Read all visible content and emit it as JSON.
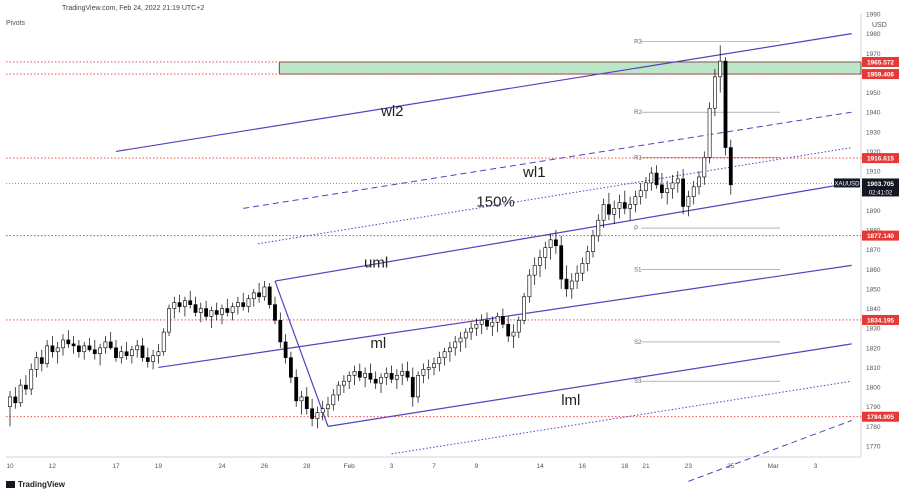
{
  "header": {
    "caption": "TradingView.com, Feb 24, 2022 21:19 UTC+2"
  },
  "indicator_label": "Pivots",
  "brand": {
    "name": "TradingView"
  },
  "chart_data": {
    "type": "candlestick",
    "currency_label": "USD",
    "ylim": [
      1760,
      1990
    ],
    "y_ticks": [
      1770,
      1780,
      1790,
      1800,
      1810,
      1820,
      1830,
      1840,
      1850,
      1860,
      1870,
      1880,
      1890,
      1900,
      1910,
      1920,
      1930,
      1940,
      1950,
      1960,
      1970,
      1980,
      1990
    ],
    "x_ticks": [
      {
        "label": "10",
        "t": 0
      },
      {
        "label": "12",
        "t": 2
      },
      {
        "label": "17",
        "t": 5
      },
      {
        "label": "19",
        "t": 7
      },
      {
        "label": "24",
        "t": 10
      },
      {
        "label": "26",
        "t": 12
      },
      {
        "label": "28",
        "t": 14
      },
      {
        "label": "Feb",
        "t": 16
      },
      {
        "label": "3",
        "t": 18
      },
      {
        "label": "7",
        "t": 20
      },
      {
        "label": "9",
        "t": 22
      },
      {
        "label": "14",
        "t": 25
      },
      {
        "label": "16",
        "t": 27
      },
      {
        "label": "18",
        "t": 29
      },
      {
        "label": "21",
        "t": 30
      },
      {
        "label": "23",
        "t": 32
      },
      {
        "label": "25",
        "t": 34
      },
      {
        "label": "Mar",
        "t": 36
      },
      {
        "label": "3",
        "t": 38
      }
    ],
    "horizontal_levels": [
      {
        "label": "1965.572",
        "value": 1965.572,
        "color": "#e53935"
      },
      {
        "label": "1959.406",
        "value": 1959.406,
        "color": "#e53935"
      },
      {
        "label": "1916.615",
        "value": 1916.615,
        "color": "#e53935"
      },
      {
        "label": "1877.140",
        "value": 1877.14,
        "color": "#e53935"
      },
      {
        "label": "1834.195",
        "value": 1834.195,
        "color": "#e53935"
      },
      {
        "label": "1784.905",
        "value": 1784.905,
        "color": "#e53935"
      }
    ],
    "current_price": {
      "symbol": "XAUUSD",
      "price": "1903.705",
      "countdown": "02:41:02",
      "value": 1903.705
    },
    "supply_zone": {
      "from_t": 12.7,
      "low": 1959.406,
      "high": 1965.572,
      "color": "#bde5c8"
    },
    "pivot_levels": [
      {
        "label": "R3",
        "value": 1976
      },
      {
        "label": "R2",
        "value": 1940
      },
      {
        "label": "R1",
        "value": 1917
      },
      {
        "label": "P",
        "value": 1881
      },
      {
        "label": "S1",
        "value": 1860
      },
      {
        "label": "S2",
        "value": 1823
      },
      {
        "label": "S3",
        "value": 1803
      }
    ],
    "pivot_range": [
      29.3,
      35.0
    ],
    "trend_lines": [
      {
        "name": "wl2",
        "t1": 5,
        "v1": 1920,
        "t2": 39.7,
        "v2": 1980,
        "style": "solid"
      },
      {
        "name": "wl1",
        "t1": 11,
        "v1": 1891,
        "t2": 39.7,
        "v2": 1940,
        "style": "dashed"
      },
      {
        "name": "150%",
        "t1": 11.7,
        "v1": 1873,
        "t2": 39.7,
        "v2": 1922,
        "style": "dotted"
      },
      {
        "name": "uml",
        "t1": 12.5,
        "v1": 1854,
        "t2": 39.7,
        "v2": 1904,
        "style": "solid"
      },
      {
        "name": "ml",
        "t1": 7,
        "v1": 1810,
        "t2": 39.7,
        "v2": 1862,
        "style": "solid"
      },
      {
        "name": "lml",
        "t1": 15,
        "v1": 1780,
        "t2": 39.7,
        "v2": 1822,
        "style": "solid"
      },
      {
        "name": "",
        "t1": 18,
        "v1": 1766,
        "t2": 39.7,
        "v2": 1803,
        "style": "dotted"
      },
      {
        "name": "",
        "t1": 32,
        "v1": 1752,
        "t2": 39.7,
        "v2": 1783,
        "style": "dashed"
      }
    ],
    "pitchfork": {
      "a_t": 7,
      "a_v": 1810,
      "b_t": 12.5,
      "b_v": 1854,
      "c_t": 15,
      "c_v": 1780
    },
    "line_labels": [
      {
        "text": "wl2",
        "t": 17.5,
        "v": 1938
      },
      {
        "text": "wl1",
        "t": 24.2,
        "v": 1907
      },
      {
        "text": "150%",
        "t": 22.0,
        "v": 1892
      },
      {
        "text": "uml",
        "t": 16.7,
        "v": 1861
      },
      {
        "text": "ml",
        "t": 17.0,
        "v": 1820
      },
      {
        "text": "lml",
        "t": 26.0,
        "v": 1791
      }
    ],
    "ohlc": [
      [
        0,
        1790,
        1798,
        1780,
        1795
      ],
      [
        0.25,
        1795,
        1800,
        1789,
        1792
      ],
      [
        0.5,
        1792,
        1804,
        1790,
        1801
      ],
      [
        0.75,
        1801,
        1806,
        1796,
        1799
      ],
      [
        1,
        1799,
        1812,
        1796,
        1809
      ],
      [
        1.25,
        1809,
        1818,
        1805,
        1815
      ],
      [
        1.5,
        1815,
        1819,
        1808,
        1812
      ],
      [
        1.75,
        1812,
        1824,
        1810,
        1821
      ],
      [
        2,
        1821,
        1826,
        1815,
        1818
      ],
      [
        2.25,
        1818,
        1823,
        1812,
        1820
      ],
      [
        2.5,
        1820,
        1827,
        1816,
        1824
      ],
      [
        2.75,
        1824,
        1829,
        1820,
        1822
      ],
      [
        3,
        1822,
        1826,
        1817,
        1821
      ],
      [
        3.25,
        1821,
        1824,
        1815,
        1818
      ],
      [
        3.5,
        1818,
        1823,
        1814,
        1821
      ],
      [
        3.75,
        1821,
        1825,
        1818,
        1819
      ],
      [
        4,
        1819,
        1824,
        1814,
        1817
      ],
      [
        4.25,
        1817,
        1822,
        1811,
        1820
      ],
      [
        4.5,
        1820,
        1826,
        1817,
        1823
      ],
      [
        4.75,
        1823,
        1828,
        1819,
        1820
      ],
      [
        5,
        1820,
        1824,
        1813,
        1815
      ],
      [
        5.25,
        1815,
        1821,
        1812,
        1818
      ],
      [
        5.5,
        1818,
        1823,
        1814,
        1816
      ],
      [
        5.75,
        1816,
        1821,
        1812,
        1819
      ],
      [
        6,
        1819,
        1824,
        1815,
        1821
      ],
      [
        6.25,
        1821,
        1825,
        1813,
        1815
      ],
      [
        6.5,
        1815,
        1820,
        1810,
        1813
      ],
      [
        6.75,
        1813,
        1819,
        1809,
        1816
      ],
      [
        7,
        1816,
        1822,
        1812,
        1818
      ],
      [
        7.25,
        1818,
        1830,
        1816,
        1828
      ],
      [
        7.5,
        1828,
        1842,
        1826,
        1840
      ],
      [
        7.75,
        1840,
        1846,
        1835,
        1843
      ],
      [
        8,
        1843,
        1847,
        1838,
        1841
      ],
      [
        8.25,
        1841,
        1846,
        1836,
        1844
      ],
      [
        8.5,
        1844,
        1849,
        1840,
        1842
      ],
      [
        8.75,
        1842,
        1846,
        1836,
        1838
      ],
      [
        9,
        1838,
        1843,
        1833,
        1840
      ],
      [
        9.25,
        1840,
        1844,
        1834,
        1836
      ],
      [
        9.5,
        1836,
        1841,
        1830,
        1839
      ],
      [
        9.75,
        1839,
        1843,
        1834,
        1837
      ],
      [
        10,
        1837,
        1842,
        1832,
        1840
      ],
      [
        10.25,
        1840,
        1845,
        1836,
        1838
      ],
      [
        10.5,
        1838,
        1843,
        1834,
        1841
      ],
      [
        10.75,
        1841,
        1846,
        1837,
        1843
      ],
      [
        11,
        1843,
        1848,
        1839,
        1841
      ],
      [
        11.25,
        1841,
        1847,
        1838,
        1845
      ],
      [
        11.5,
        1845,
        1850,
        1841,
        1848
      ],
      [
        11.75,
        1848,
        1853,
        1843,
        1846
      ],
      [
        12,
        1846,
        1854,
        1844,
        1851
      ],
      [
        12.25,
        1851,
        1853,
        1840,
        1842
      ],
      [
        12.5,
        1842,
        1846,
        1832,
        1834
      ],
      [
        12.75,
        1834,
        1838,
        1820,
        1823
      ],
      [
        13,
        1823,
        1827,
        1812,
        1815
      ],
      [
        13.25,
        1815,
        1818,
        1802,
        1805
      ],
      [
        13.5,
        1805,
        1809,
        1790,
        1793
      ],
      [
        13.75,
        1793,
        1798,
        1786,
        1795
      ],
      [
        14,
        1795,
        1800,
        1786,
        1789
      ],
      [
        14.25,
        1789,
        1794,
        1780,
        1784
      ],
      [
        14.5,
        1784,
        1790,
        1779,
        1787
      ],
      [
        14.75,
        1787,
        1793,
        1783,
        1789
      ],
      [
        15,
        1789,
        1795,
        1785,
        1791
      ],
      [
        15.25,
        1791,
        1799,
        1788,
        1796
      ],
      [
        15.5,
        1796,
        1803,
        1793,
        1801
      ],
      [
        15.75,
        1801,
        1806,
        1797,
        1803
      ],
      [
        16,
        1803,
        1808,
        1799,
        1806
      ],
      [
        16.25,
        1806,
        1811,
        1801,
        1808
      ],
      [
        16.5,
        1808,
        1812,
        1803,
        1805
      ],
      [
        16.75,
        1805,
        1810,
        1800,
        1807
      ],
      [
        17,
        1807,
        1812,
        1802,
        1804
      ],
      [
        17.25,
        1804,
        1808,
        1799,
        1802
      ],
      [
        17.5,
        1802,
        1807,
        1797,
        1805
      ],
      [
        17.75,
        1805,
        1810,
        1801,
        1807
      ],
      [
        18,
        1807,
        1811,
        1802,
        1804
      ],
      [
        18.25,
        1804,
        1809,
        1799,
        1806
      ],
      [
        18.5,
        1806,
        1812,
        1801,
        1808
      ],
      [
        18.75,
        1808,
        1813,
        1803,
        1805
      ],
      [
        19,
        1805,
        1810,
        1790,
        1795
      ],
      [
        19.25,
        1795,
        1808,
        1792,
        1806
      ],
      [
        19.5,
        1806,
        1812,
        1802,
        1809
      ],
      [
        19.75,
        1809,
        1814,
        1804,
        1810
      ],
      [
        20,
        1810,
        1815,
        1806,
        1812
      ],
      [
        20.25,
        1812,
        1818,
        1808,
        1815
      ],
      [
        20.5,
        1815,
        1820,
        1811,
        1818
      ],
      [
        20.75,
        1818,
        1823,
        1813,
        1820
      ],
      [
        21,
        1820,
        1826,
        1816,
        1823
      ],
      [
        21.25,
        1823,
        1828,
        1818,
        1825
      ],
      [
        21.5,
        1825,
        1830,
        1820,
        1828
      ],
      [
        21.75,
        1828,
        1833,
        1824,
        1830
      ],
      [
        22,
        1830,
        1835,
        1826,
        1832
      ],
      [
        22.25,
        1832,
        1837,
        1827,
        1834
      ],
      [
        22.5,
        1834,
        1838,
        1829,
        1831
      ],
      [
        22.75,
        1831,
        1836,
        1826,
        1833
      ],
      [
        23,
        1833,
        1838,
        1828,
        1836
      ],
      [
        23.25,
        1836,
        1840,
        1830,
        1832
      ],
      [
        23.5,
        1832,
        1836,
        1823,
        1826
      ],
      [
        23.75,
        1826,
        1832,
        1820,
        1828
      ],
      [
        24,
        1828,
        1836,
        1825,
        1834
      ],
      [
        24.25,
        1834,
        1848,
        1832,
        1846
      ],
      [
        24.5,
        1846,
        1860,
        1843,
        1857
      ],
      [
        24.75,
        1857,
        1866,
        1852,
        1862
      ],
      [
        25,
        1862,
        1870,
        1856,
        1866
      ],
      [
        25.25,
        1866,
        1874,
        1860,
        1871
      ],
      [
        25.5,
        1871,
        1878,
        1865,
        1875
      ],
      [
        25.75,
        1875,
        1880,
        1868,
        1872
      ],
      [
        26,
        1872,
        1877,
        1850,
        1855
      ],
      [
        26.25,
        1855,
        1862,
        1846,
        1850
      ],
      [
        26.5,
        1850,
        1858,
        1845,
        1854
      ],
      [
        26.75,
        1854,
        1862,
        1850,
        1858
      ],
      [
        27,
        1858,
        1866,
        1854,
        1863
      ],
      [
        27.25,
        1863,
        1872,
        1859,
        1869
      ],
      [
        27.5,
        1869,
        1880,
        1866,
        1877
      ],
      [
        27.75,
        1877,
        1888,
        1874,
        1885
      ],
      [
        28,
        1885,
        1896,
        1881,
        1893
      ],
      [
        28.25,
        1893,
        1899,
        1885,
        1888
      ],
      [
        28.5,
        1888,
        1895,
        1883,
        1891
      ],
      [
        28.75,
        1891,
        1898,
        1886,
        1894
      ],
      [
        29,
        1894,
        1900,
        1888,
        1891
      ],
      [
        29.25,
        1891,
        1897,
        1885,
        1893
      ],
      [
        29.5,
        1893,
        1900,
        1889,
        1897
      ],
      [
        29.75,
        1897,
        1904,
        1893,
        1900
      ],
      [
        30,
        1900,
        1907,
        1896,
        1904
      ],
      [
        30.25,
        1904,
        1912,
        1900,
        1909
      ],
      [
        30.5,
        1909,
        1913,
        1901,
        1903
      ],
      [
        30.75,
        1903,
        1909,
        1896,
        1899
      ],
      [
        31,
        1899,
        1905,
        1893,
        1901
      ],
      [
        31.25,
        1901,
        1908,
        1896,
        1904
      ],
      [
        31.5,
        1904,
        1910,
        1899,
        1906
      ],
      [
        31.75,
        1906,
        1911,
        1888,
        1892
      ],
      [
        32,
        1892,
        1900,
        1887,
        1897
      ],
      [
        32.25,
        1897,
        1905,
        1893,
        1902
      ],
      [
        32.5,
        1902,
        1910,
        1898,
        1907
      ],
      [
        32.75,
        1907,
        1920,
        1903,
        1917
      ],
      [
        33,
        1917,
        1945,
        1914,
        1942
      ],
      [
        33.25,
        1942,
        1962,
        1938,
        1958
      ],
      [
        33.5,
        1958,
        1974,
        1950,
        1966
      ],
      [
        33.75,
        1966,
        1968,
        1918,
        1922
      ],
      [
        34,
        1922,
        1926,
        1898,
        1903
      ]
    ]
  }
}
